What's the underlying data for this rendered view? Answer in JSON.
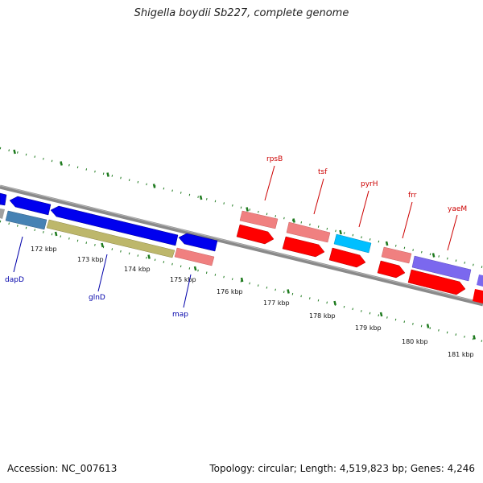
{
  "title": "Shigella boydii Sb227, complete genome",
  "footer": {
    "accession": "Accession: NC_007613",
    "topology": "Topology: circular; Length: 4,519,823 bp; Genes: 4,246"
  },
  "colors": {
    "backbone": "#888888",
    "ticks": "#1e7a1e",
    "forward_label": "#cc0000",
    "reverse_label": "#0000aa"
  },
  "kbp_labels": [
    "172 kbp",
    "173 kbp",
    "174 kbp",
    "175 kbp",
    "176 kbp",
    "177 kbp",
    "178 kbp",
    "179 kbp",
    "180 kbp",
    "181 kbp"
  ],
  "forward_genes": [
    {
      "name": "rpsB",
      "color": "#f08080"
    },
    {
      "name": "tsf",
      "color": "#f08080"
    },
    {
      "name": "pyrH",
      "color": "#00bfff"
    },
    {
      "name": "frr",
      "color": "#f08080"
    },
    {
      "name": "yaeM",
      "color": "#7b68ee"
    }
  ],
  "reverse_genes": [
    {
      "name": "dapD",
      "color": "#4682b4"
    },
    {
      "name": "glnD",
      "color": "#bdb76b"
    },
    {
      "name": "map",
      "color": "#f08080"
    }
  ]
}
